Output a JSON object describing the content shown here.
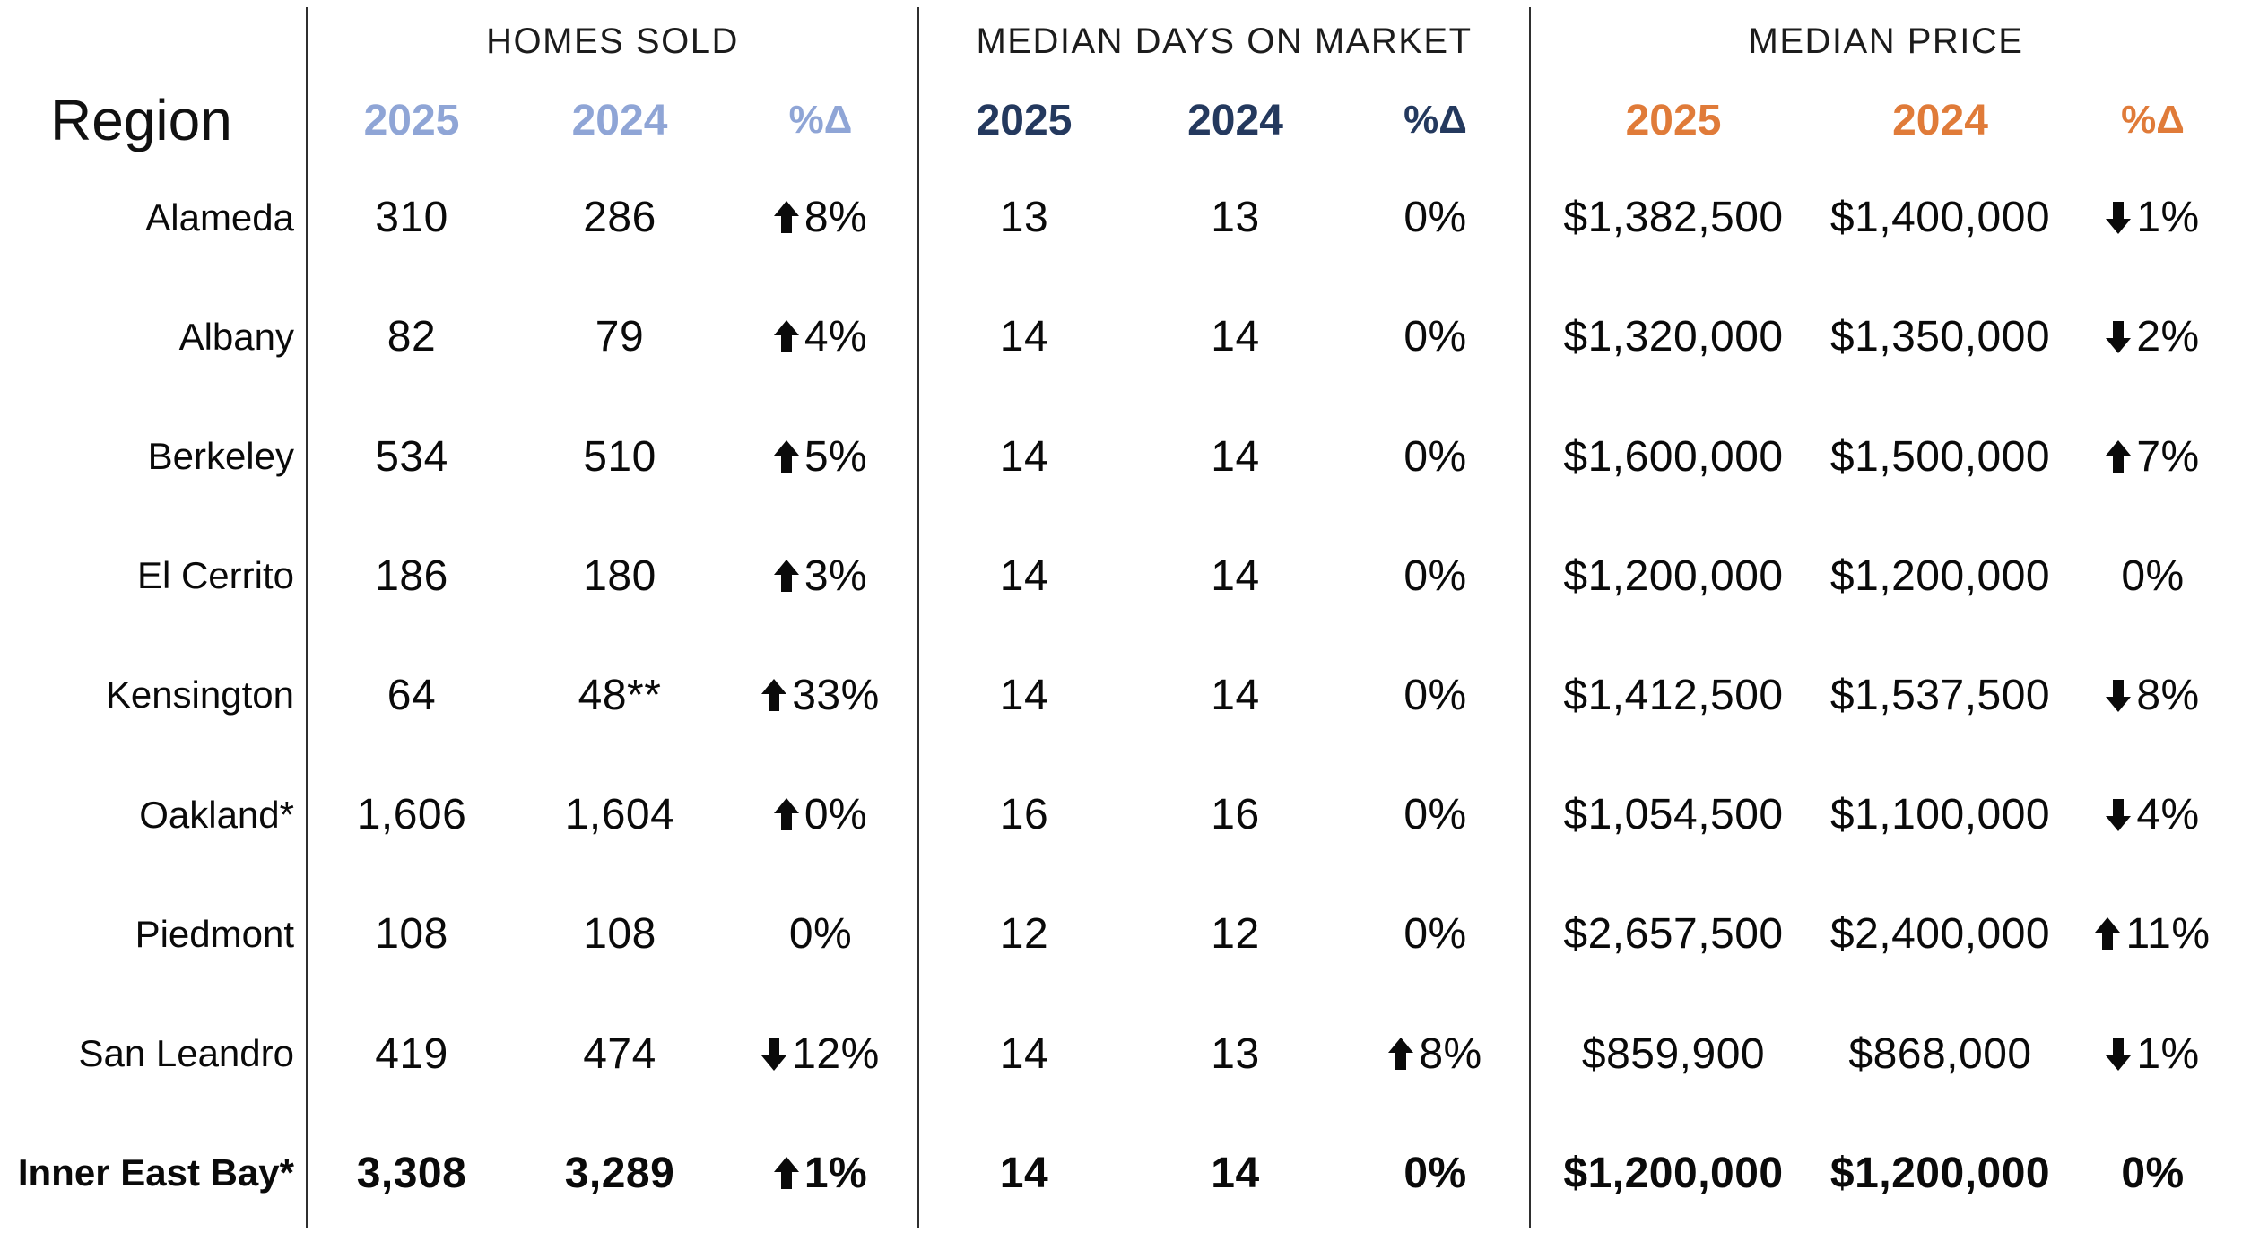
{
  "colors": {
    "homes_sold_accent": "#8FA5D6",
    "days_on_market_accent": "#24395E",
    "median_price_accent": "#E07B39",
    "text": "#0A0A0A",
    "divider": "#2F2F2F",
    "background": "#FFFFFF"
  },
  "table": {
    "region_header": "Region",
    "sections": [
      {
        "title": "HOMES SOLD",
        "col_2025": "2025",
        "col_2024": "2024",
        "col_delta": "%Δ"
      },
      {
        "title": "MEDIAN DAYS ON MARKET",
        "col_2025": "2025",
        "col_2024": "2024",
        "col_delta": "%Δ"
      },
      {
        "title": "MEDIAN PRICE",
        "col_2025": "2025",
        "col_2024": "2024",
        "col_delta": "%Δ"
      }
    ],
    "rows": [
      {
        "region": "Alameda",
        "homes_sold": {
          "y2025": "310",
          "y2024": "286",
          "delta": {
            "direction": "up",
            "arrow_class": "arr up",
            "pct": "8%"
          }
        },
        "days_on_market": {
          "y2025": "13",
          "y2024": "13",
          "delta": {
            "direction": "none",
            "arrow_class": "arr none",
            "pct": "0%"
          }
        },
        "median_price": {
          "y2025": "$1,382,500",
          "y2024": "$1,400,000",
          "delta": {
            "direction": "down",
            "arrow_class": "arr down",
            "pct": "1%"
          }
        }
      },
      {
        "region": "Albany",
        "homes_sold": {
          "y2025": "82",
          "y2024": "79",
          "delta": {
            "direction": "up",
            "arrow_class": "arr up",
            "pct": "4%"
          }
        },
        "days_on_market": {
          "y2025": "14",
          "y2024": "14",
          "delta": {
            "direction": "none",
            "arrow_class": "arr none",
            "pct": "0%"
          }
        },
        "median_price": {
          "y2025": "$1,320,000",
          "y2024": "$1,350,000",
          "delta": {
            "direction": "down",
            "arrow_class": "arr down",
            "pct": "2%"
          }
        }
      },
      {
        "region": "Berkeley",
        "homes_sold": {
          "y2025": "534",
          "y2024": "510",
          "delta": {
            "direction": "up",
            "arrow_class": "arr up",
            "pct": "5%"
          }
        },
        "days_on_market": {
          "y2025": "14",
          "y2024": "14",
          "delta": {
            "direction": "none",
            "arrow_class": "arr none",
            "pct": "0%"
          }
        },
        "median_price": {
          "y2025": "$1,600,000",
          "y2024": "$1,500,000",
          "delta": {
            "direction": "up",
            "arrow_class": "arr up",
            "pct": "7%"
          }
        }
      },
      {
        "region": "El Cerrito",
        "homes_sold": {
          "y2025": "186",
          "y2024": "180",
          "delta": {
            "direction": "up",
            "arrow_class": "arr up",
            "pct": "3%"
          }
        },
        "days_on_market": {
          "y2025": "14",
          "y2024": "14",
          "delta": {
            "direction": "none",
            "arrow_class": "arr none",
            "pct": "0%"
          }
        },
        "median_price": {
          "y2025": "$1,200,000",
          "y2024": "$1,200,000",
          "delta": {
            "direction": "none",
            "arrow_class": "arr none",
            "pct": "0%"
          }
        }
      },
      {
        "region": "Kensington",
        "homes_sold": {
          "y2025": "64",
          "y2024": "48**",
          "delta": {
            "direction": "up",
            "arrow_class": "arr up",
            "pct": "33%"
          }
        },
        "days_on_market": {
          "y2025": "14",
          "y2024": "14",
          "delta": {
            "direction": "none",
            "arrow_class": "arr none",
            "pct": "0%"
          }
        },
        "median_price": {
          "y2025": "$1,412,500",
          "y2024": "$1,537,500",
          "delta": {
            "direction": "down",
            "arrow_class": "arr down",
            "pct": "8%"
          }
        }
      },
      {
        "region": "Oakland*",
        "homes_sold": {
          "y2025": "1,606",
          "y2024": "1,604",
          "delta": {
            "direction": "up",
            "arrow_class": "arr up",
            "pct": "0%"
          }
        },
        "days_on_market": {
          "y2025": "16",
          "y2024": "16",
          "delta": {
            "direction": "none",
            "arrow_class": "arr none",
            "pct": "0%"
          }
        },
        "median_price": {
          "y2025": "$1,054,500",
          "y2024": "$1,100,000",
          "delta": {
            "direction": "down",
            "arrow_class": "arr down",
            "pct": "4%"
          }
        }
      },
      {
        "region": "Piedmont",
        "homes_sold": {
          "y2025": "108",
          "y2024": "108",
          "delta": {
            "direction": "none",
            "arrow_class": "arr none",
            "pct": "0%"
          }
        },
        "days_on_market": {
          "y2025": "12",
          "y2024": "12",
          "delta": {
            "direction": "none",
            "arrow_class": "arr none",
            "pct": "0%"
          }
        },
        "median_price": {
          "y2025": "$2,657,500",
          "y2024": "$2,400,000",
          "delta": {
            "direction": "up",
            "arrow_class": "arr up",
            "pct": "11%"
          }
        }
      },
      {
        "region": "San Leandro",
        "homes_sold": {
          "y2025": "419",
          "y2024": "474",
          "delta": {
            "direction": "down",
            "arrow_class": "arr down",
            "pct": "12%"
          }
        },
        "days_on_market": {
          "y2025": "14",
          "y2024": "13",
          "delta": {
            "direction": "up",
            "arrow_class": "arr up",
            "pct": "8%"
          }
        },
        "median_price": {
          "y2025": "$859,900",
          "y2024": "$868,000",
          "delta": {
            "direction": "down",
            "arrow_class": "arr down",
            "pct": "1%"
          }
        }
      },
      {
        "region": "Inner East Bay*",
        "homes_sold": {
          "y2025": "3,308",
          "y2024": "3,289",
          "delta": {
            "direction": "up",
            "arrow_class": "arr up",
            "pct": "1%"
          }
        },
        "days_on_market": {
          "y2025": "14",
          "y2024": "14",
          "delta": {
            "direction": "none",
            "arrow_class": "arr none",
            "pct": "0%"
          }
        },
        "median_price": {
          "y2025": "$1,200,000",
          "y2024": "$1,200,000",
          "delta": {
            "direction": "none",
            "arrow_class": "arr none",
            "pct": "0%"
          }
        }
      }
    ]
  }
}
